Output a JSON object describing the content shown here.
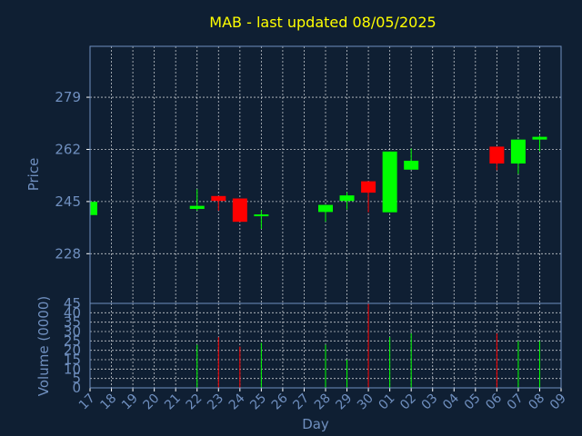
{
  "chart_data": {
    "type": "candlestick",
    "title": "MAB - last updated 08/05/2025",
    "xlabel": "Day",
    "price_panel": {
      "ylabel": "Price",
      "yticks": [
        228,
        245,
        262,
        279
      ],
      "ylim": [
        211.8,
        295.6
      ],
      "grid": true
    },
    "volume_panel": {
      "ylabel": "Volume (0000)",
      "yticks": [
        0,
        5,
        10,
        15,
        20,
        25,
        30,
        35,
        40,
        45
      ],
      "ylim": [
        0,
        45
      ],
      "grid": true
    },
    "x_ticks": [
      "17",
      "18",
      "19",
      "20",
      "21",
      "22",
      "23",
      "24",
      "25",
      "26",
      "27",
      "28",
      "29",
      "30",
      "01",
      "02",
      "03",
      "04",
      "05",
      "06",
      "07",
      "08",
      "09"
    ],
    "up_color": "#00ff00",
    "down_color": "#ff0000",
    "candles": [
      {
        "day": "17",
        "open": 240.6,
        "close": 244.9,
        "high": 244.9,
        "low": 240.6,
        "volume": 0
      },
      {
        "day": "22",
        "open": 242.6,
        "close": 243.6,
        "high": 249.0,
        "low": 242.0,
        "volume": 23
      },
      {
        "day": "23",
        "open": 246.8,
        "close": 245.2,
        "high": 246.8,
        "low": 242.0,
        "volume": 27
      },
      {
        "day": "24",
        "open": 246.0,
        "close": 238.4,
        "high": 246.0,
        "low": 238.4,
        "volume": 22
      },
      {
        "day": "25",
        "open": 240.6,
        "close": 240.8,
        "high": 242.2,
        "low": 236.1,
        "volume": 24
      },
      {
        "day": "28",
        "open": 241.6,
        "close": 243.9,
        "high": 243.9,
        "low": 238.4,
        "volume": 23
      },
      {
        "day": "29",
        "open": 245.2,
        "close": 247.0,
        "high": 248.0,
        "low": 242.4,
        "volume": 15
      },
      {
        "day": "30",
        "open": 251.6,
        "close": 247.9,
        "high": 251.6,
        "low": 241.5,
        "volume": 45
      },
      {
        "day": "01",
        "open": 241.5,
        "close": 261.3,
        "high": 261.3,
        "low": 241.5,
        "volume": 27
      },
      {
        "day": "02",
        "open": 255.4,
        "close": 258.3,
        "high": 262.3,
        "low": 255.4,
        "volume": 29
      },
      {
        "day": "06",
        "open": 262.9,
        "close": 257.4,
        "high": 262.9,
        "low": 255.2,
        "volume": 29
      },
      {
        "day": "07",
        "open": 257.4,
        "close": 265.2,
        "high": 265.2,
        "low": 254.0,
        "volume": 25
      },
      {
        "day": "08",
        "open": 265.2,
        "close": 266.1,
        "high": 266.5,
        "low": 261.4,
        "volume": 25
      }
    ]
  }
}
